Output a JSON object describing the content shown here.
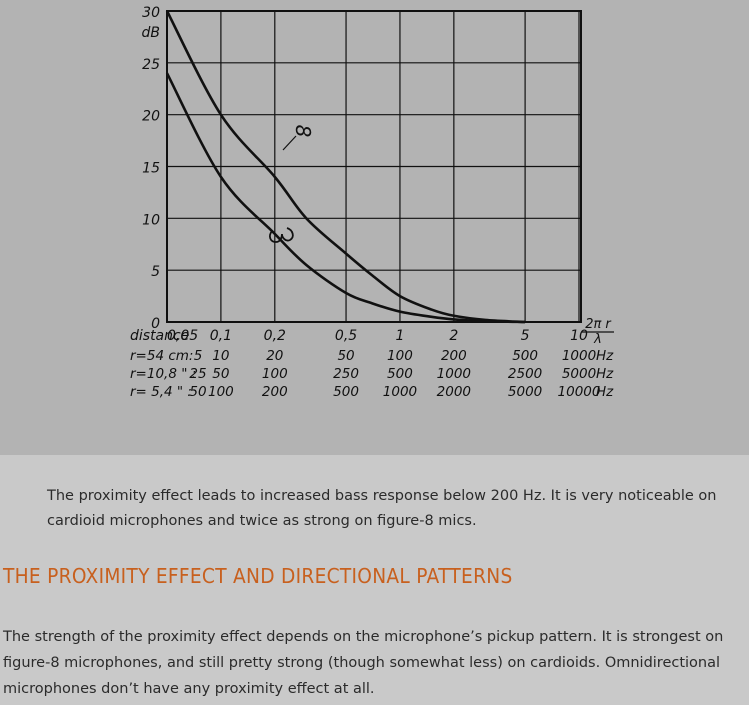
{
  "chart_data": {
    "type": "line",
    "x_scale": "log",
    "y_unit": "dB",
    "ylim": [
      0,
      30
    ],
    "y_ticks": [
      0,
      5,
      10,
      15,
      20,
      25,
      30
    ],
    "x_axis_parameter": "2πr/λ",
    "x_ticks": [
      0.05,
      0.1,
      0.2,
      0.5,
      1,
      2,
      5,
      10
    ],
    "x_tick_labels": [
      "0,05",
      "0,1",
      "0,2",
      "0,5",
      "1",
      "2",
      "5",
      "10"
    ],
    "x_axis_unit_label": "2π r / λ",
    "distance_label": "distance",
    "distance_rows": [
      {
        "label": "r=54 cm:",
        "values": [
          "5",
          "10",
          "20",
          "50",
          "100",
          "200",
          "500",
          "1000"
        ],
        "unit": "Hz"
      },
      {
        "label": "r=10,8 \" :",
        "values": [
          "25",
          "50",
          "100",
          "250",
          "500",
          "1000",
          "2500",
          "5000"
        ],
        "unit": "Hz"
      },
      {
        "label": "r= 5,4 \" :",
        "values": [
          "50",
          "100",
          "200",
          "500",
          "1000",
          "2000",
          "5000",
          "10000"
        ],
        "unit": "Hz"
      }
    ],
    "series": [
      {
        "name": "8",
        "x": [
          0.05,
          0.1,
          0.2,
          0.3,
          0.5,
          0.7,
          1,
          1.5,
          2,
          3,
          5
        ],
        "y": [
          30,
          20,
          14,
          10,
          6.6,
          4.5,
          2.5,
          1.2,
          0.6,
          0.2,
          0
        ]
      },
      {
        "name": "cardioid",
        "x": [
          0.05,
          0.1,
          0.2,
          0.3,
          0.5,
          0.7,
          1,
          1.5,
          2,
          3,
          5
        ],
        "y": [
          24,
          14,
          8.5,
          5.5,
          2.8,
          1.8,
          1.0,
          0.5,
          0.25,
          0.08,
          0
        ]
      }
    ],
    "curve_labels": [
      "8",
      "cardioid-symbol"
    ],
    "grid": true
  },
  "caption": "The proximity effect leads to increased bass response below 200 Hz. It is very noticeable on cardioid microphones and twice as strong on figure-8 mics.",
  "heading": "THE PROXIMITY EFFECT AND DIRECTIONAL PATTERNS",
  "body": "The strength of the proximity effect depends on the microphone’s pickup pattern. It is strongest on figure-8 microphones, and still pretty strong (though somewhat less) on cardioids. Omnidirectional microphones don’t have any proximity effect at all.",
  "colors": {
    "panel": "#b3b3b3",
    "page": "#c9c9c9",
    "heading": "#c8601e",
    "ink": "#111111"
  }
}
